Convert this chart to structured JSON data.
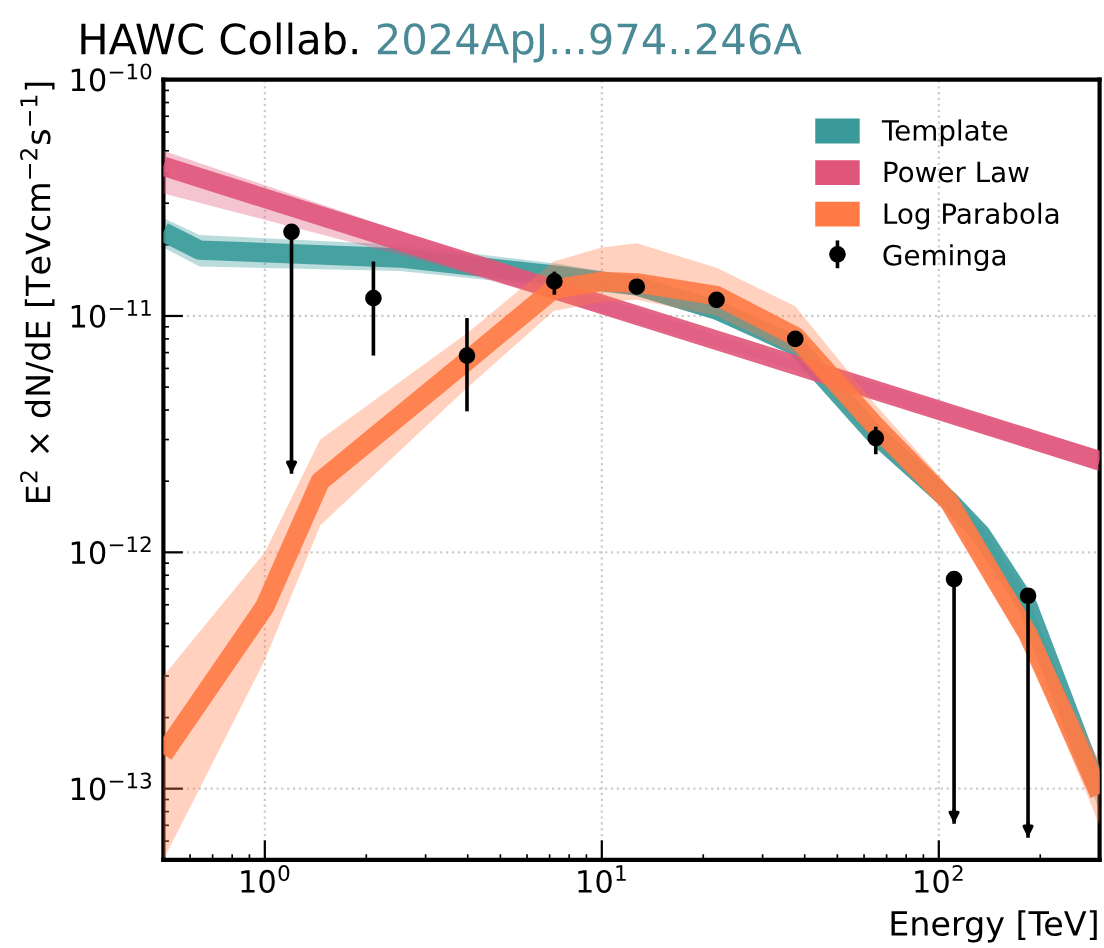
{
  "chart_data": {
    "type": "line",
    "title": "HAWC Collab.",
    "subtitle": "2024ApJ...974..246A",
    "xlabel": "Energy [TeV]",
    "ylabel": "E$^{2}$ × dN/dE [TeVcm$^{−2}$s$^{−1}$]",
    "log": "xy",
    "xlim": [
      0.5,
      300
    ],
    "ylim": [
      5e-14,
      1e-10
    ],
    "xticks": [
      {
        "value": 1,
        "label": "10$^{0}$"
      },
      {
        "value": 10,
        "label": "10$^{1}$"
      },
      {
        "value": 100,
        "label": "10$^{2}$"
      }
    ],
    "yticks": [
      {
        "value": 1e-13,
        "label": "10$^{−13}$"
      },
      {
        "value": 1e-12,
        "label": "10$^{−12}$"
      },
      {
        "value": 1e-11,
        "label": "10$^{−11}$"
      },
      {
        "value": 1e-10,
        "label": "10$^{−10}$"
      }
    ],
    "grid": true,
    "legend": "top right",
    "series": [
      {
        "name": "Template",
        "color": "#3a9a9a",
        "x": [
          0.5,
          0.64,
          2.52,
          7.5,
          12.7,
          21.9,
          37.5,
          64,
          107,
          133,
          184,
          300
        ],
        "values": [
          2.27e-11,
          1.9e-11,
          1.76e-11,
          1.48e-11,
          1.34e-11,
          1.06e-11,
          7.5e-12,
          3.2e-12,
          1.66e-12,
          1.2e-12,
          5.9e-13,
          9.5e-14
        ],
        "lower": [
          1.95e-11,
          1.62e-11,
          1.55e-11,
          1.32e-11,
          1.22e-11,
          9.6e-12,
          6.9e-12,
          2.9e-12,
          1.5e-12,
          1.08e-12,
          5.3e-13,
          8e-14
        ],
        "upper": [
          2.6e-11,
          2.2e-11,
          2e-11,
          1.66e-11,
          1.46e-11,
          1.16e-11,
          8.2e-12,
          3.5e-12,
          1.82e-12,
          1.32e-12,
          6.5e-13,
          1.1e-13
        ]
      },
      {
        "name": "Power Law",
        "color": "#e0557a",
        "x": [
          0.5,
          3,
          30,
          300
        ],
        "values": [
          4.3e-11,
          1.92e-11,
          6.86e-12,
          2.44e-12
        ],
        "lower": [
          3.3e-11,
          1.7e-11,
          6.5e-12,
          2.2e-12
        ],
        "upper": [
          5e-11,
          2.1e-11,
          7.2e-12,
          2.7e-12
        ]
      },
      {
        "name": "Log Parabola",
        "color": "#ff7a45",
        "x": [
          0.5,
          1,
          1.46,
          4,
          7.2,
          10,
          12.7,
          21.9,
          37.5,
          64,
          107,
          184,
          300
        ],
        "values": [
          1.4e-13,
          5.9e-13,
          2e-12,
          6.5e-12,
          1.3e-11,
          1.4e-11,
          1.38e-11,
          1.22e-11,
          8.2e-12,
          3.5e-12,
          1.65e-12,
          4.5e-13,
          9.5e-14
        ],
        "lower": [
          5e-14,
          3.5e-13,
          1.3e-12,
          5e-12,
          1.05e-11,
          1.15e-11,
          1.17e-11,
          1e-11,
          6.9e-12,
          3e-12,
          1.45e-12,
          3.8e-13,
          7e-14
        ],
        "upper": [
          3e-13,
          1e-12,
          3e-12,
          8.5e-12,
          1.7e-11,
          1.95e-11,
          2.03e-11,
          1.6e-11,
          1.1e-11,
          4.3e-12,
          1.9e-12,
          5.3e-13,
          1.3e-13
        ]
      },
      {
        "name": "Geminga",
        "type": "scatter",
        "color": "#000000",
        "marker": "circle",
        "x": [
          1.2,
          2.1,
          3.98,
          7.23,
          12.7,
          21.9,
          37.5,
          65,
          111,
          184
        ],
        "values": [
          2.27e-11,
          1.19e-11,
          6.8e-12,
          1.4e-11,
          1.33e-11,
          1.17e-11,
          8e-12,
          3.04e-12,
          7.7e-13,
          6.55e-13
        ],
        "errors": [
          [
            2.15e-12,
            2.27e-11
          ],
          [
            6.8e-12,
            1.7e-11
          ],
          [
            3.95e-12,
            9.8e-12
          ],
          [
            1.23e-11,
            1.54e-11
          ],
          null,
          null,
          null,
          [
            2.6e-12,
            3.4e-12
          ],
          [
            7.1e-14,
            7.7e-13
          ],
          [
            6.2e-14,
            6.55e-13
          ]
        ]
      }
    ]
  }
}
